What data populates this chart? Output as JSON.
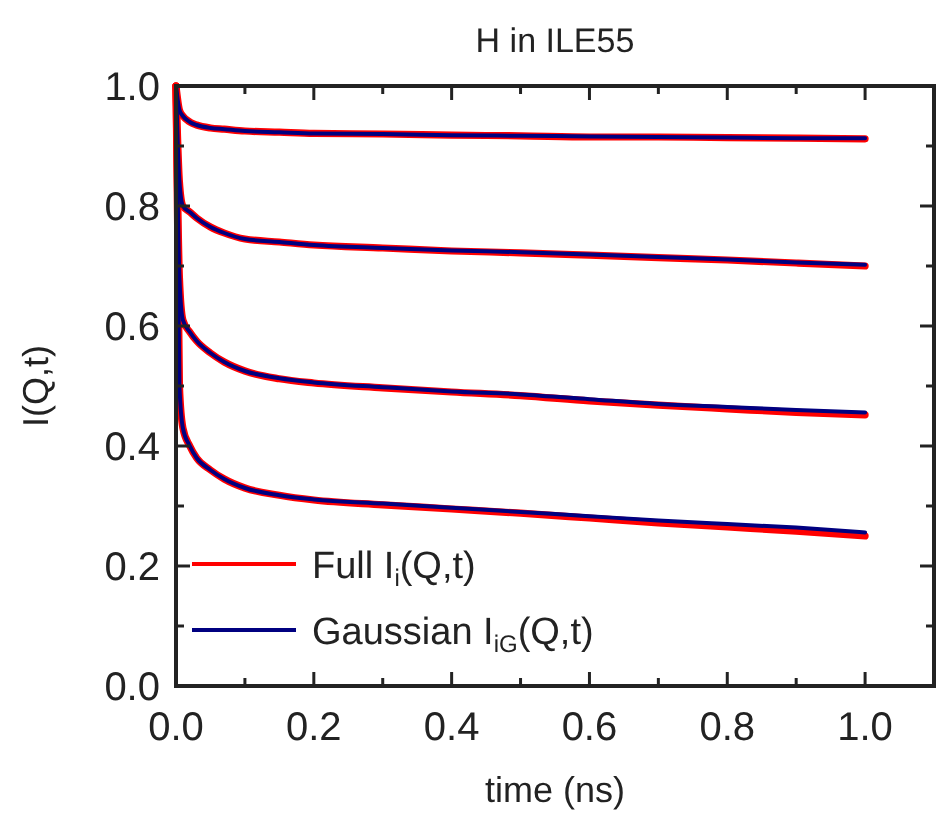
{
  "chart_data": {
    "type": "line",
    "title": "H in ILE55",
    "xlabel": "time (ns)",
    "ylabel": "I(Q,t)",
    "x": [
      0,
      0.005,
      0.01,
      0.02,
      0.03,
      0.05,
      0.07,
      0.1,
      0.15,
      0.2,
      0.3,
      0.4,
      0.5,
      0.6,
      0.7,
      0.8,
      0.9,
      1.0
    ],
    "series": [
      {
        "name": "Full I$_{i}$(Q,t)",
        "color": "#ff0000",
        "values": [
          1.0,
          0.96,
          0.95,
          0.94,
          0.935,
          0.93,
          0.928,
          0.925,
          0.923,
          0.921,
          0.92,
          0.918,
          0.917,
          0.915,
          0.915,
          0.914,
          0.913,
          0.912
        ]
      },
      {
        "color": "#ff0000",
        "values": [
          1.0,
          0.84,
          0.8,
          0.79,
          0.78,
          0.765,
          0.755,
          0.745,
          0.74,
          0.735,
          0.73,
          0.725,
          0.722,
          0.718,
          0.714,
          0.71,
          0.705,
          0.7
        ]
      },
      {
        "color": "#ff0000",
        "values": [
          1.0,
          0.68,
          0.61,
          0.59,
          0.575,
          0.555,
          0.54,
          0.525,
          0.512,
          0.505,
          0.497,
          0.49,
          0.484,
          0.475,
          0.468,
          0.462,
          0.456,
          0.452
        ]
      },
      {
        "color": "#ff0000",
        "values": [
          1.0,
          0.5,
          0.43,
          0.4,
          0.38,
          0.36,
          0.345,
          0.33,
          0.318,
          0.31,
          0.302,
          0.295,
          0.288,
          0.28,
          0.272,
          0.265,
          0.258,
          0.25
        ]
      },
      {
        "name": "Gaussian I$_{iG}$(Q,t)",
        "color": "#000080",
        "values": [
          1.0,
          0.96,
          0.95,
          0.94,
          0.935,
          0.93,
          0.928,
          0.925,
          0.923,
          0.921,
          0.92,
          0.918,
          0.917,
          0.916,
          0.915,
          0.914,
          0.913,
          0.913
        ]
      },
      {
        "color": "#000080",
        "values": [
          1.0,
          0.84,
          0.8,
          0.79,
          0.78,
          0.765,
          0.755,
          0.745,
          0.74,
          0.735,
          0.73,
          0.726,
          0.723,
          0.719,
          0.715,
          0.711,
          0.706,
          0.702
        ]
      },
      {
        "color": "#000080",
        "values": [
          1.0,
          0.68,
          0.61,
          0.59,
          0.575,
          0.555,
          0.54,
          0.525,
          0.513,
          0.506,
          0.498,
          0.491,
          0.486,
          0.478,
          0.47,
          0.465,
          0.46,
          0.456
        ]
      },
      {
        "color": "#000080",
        "values": [
          1.0,
          0.5,
          0.43,
          0.4,
          0.38,
          0.36,
          0.345,
          0.33,
          0.318,
          0.311,
          0.304,
          0.297,
          0.29,
          0.283,
          0.276,
          0.27,
          0.264,
          0.256
        ]
      }
    ],
    "xlim": [
      0,
      1.1
    ],
    "ylim": [
      0,
      1.0
    ],
    "xticks": [
      {
        "value": 0,
        "label": "0.0"
      },
      {
        "value": 0.1,
        "label": null
      },
      {
        "value": 0.2,
        "label": "0.2"
      },
      {
        "value": 0.3,
        "label": null
      },
      {
        "value": 0.4,
        "label": "0.4"
      },
      {
        "value": 0.5,
        "label": null
      },
      {
        "value": 0.6,
        "label": "0.6"
      },
      {
        "value": 0.7,
        "label": null
      },
      {
        "value": 0.8,
        "label": "0.8"
      },
      {
        "value": 0.9,
        "label": null
      },
      {
        "value": 1.0,
        "label": "1.0"
      }
    ],
    "yticks": [
      {
        "value": 0,
        "label": "0.0"
      },
      {
        "value": 0.1,
        "label": null
      },
      {
        "value": 0.2,
        "label": "0.2"
      },
      {
        "value": 0.3,
        "label": null
      },
      {
        "value": 0.4,
        "label": "0.4"
      },
      {
        "value": 0.5,
        "label": null
      },
      {
        "value": 0.6,
        "label": "0.6"
      },
      {
        "value": 0.7,
        "label": null
      },
      {
        "value": 0.8,
        "label": "0.8"
      },
      {
        "value": 0.9,
        "label": null
      },
      {
        "value": 1.0,
        "label": "1.0"
      }
    ],
    "grid": false,
    "legend": "bottom left",
    "marker": "none",
    "line_style": "solid"
  }
}
